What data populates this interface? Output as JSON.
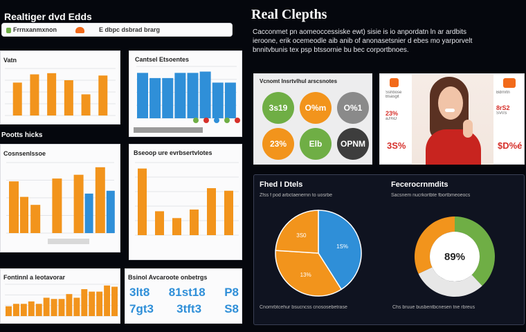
{
  "colors": {
    "orange": "#f2941c",
    "blue": "#2f8fd8",
    "green": "#6fae45",
    "gray": "#8a8a8a",
    "dark": "#3d3d3d",
    "panel": "#0f1320",
    "red": "#d6302a"
  },
  "header": {
    "title": "Realtiger dvd Edds",
    "tab1": "Frrnxanmxnon",
    "tab2": "E dbpc dsbrad brarg"
  },
  "right_header": {
    "title": "Real Clepths",
    "desc_lines": [
      "Cacconmet pn aomeoccessiske ewt) sisie is io anpordatn ln ar ardbits",
      "ieroone, erik ocemeodle aib anib of anonasetsnier d ebes mo yarporvelt",
      "bnnitvbunis tex psp btssornie bu bec corportbnoes."
    ]
  },
  "panel_a": {
    "label": "Vatn",
    "bars": [
      28,
      35,
      36,
      30,
      18,
      34
    ]
  },
  "panel_b": {
    "title": "Cantsel Etsoentes",
    "bars": [
      70,
      62,
      62,
      70,
      70,
      72,
      55,
      55
    ]
  },
  "section_label_1": "Pootts hicks",
  "panel_c": {
    "title": "Cosnsenlssoe",
    "bars": [
      {
        "o": 55,
        "b": 0
      },
      {
        "o": 30,
        "b": 0
      },
      {
        "o": 58,
        "b": 0
      },
      {
        "o": 62,
        "b": 42
      },
      {
        "o": 70,
        "b": 45
      }
    ]
  },
  "panel_d": {
    "title": "Bseoop ure evrbsertvlotes",
    "bars": [
      78,
      28,
      20,
      30,
      55,
      52
    ]
  },
  "panel_e": {
    "title": "Fontinnl a leotavorar",
    "bars": [
      8,
      10,
      10,
      12,
      10,
      15,
      14,
      14,
      18,
      15,
      22,
      20,
      20,
      25,
      24
    ]
  },
  "panel_f": {
    "title": "Bsinol Avcaroote onbetrgs",
    "rows": [
      [
        "3lt8",
        "81st18",
        "P8"
      ],
      [
        "7gt3",
        "3tft3",
        "S8"
      ]
    ]
  },
  "circles_card": {
    "title": "Vcnomt lnsrtvlhul arscsnotes",
    "items": [
      {
        "label": "3s19",
        "color": "#6fae45"
      },
      {
        "label": "O%m",
        "color": "#f2941c"
      },
      {
        "label": "O%1",
        "color": "#8a8a8a"
      },
      {
        "label": "23%",
        "color": "#f2941c"
      },
      {
        "label": "Elb",
        "color": "#6fae45"
      },
      {
        "label": "OPNM",
        "color": "#3d3d3d"
      }
    ]
  },
  "promo_card": {
    "left_items": [
      "Sshbose",
      "Bsasgit",
      "23%",
      "aJ%O"
    ],
    "right_items": [
      "Bdrnrtn",
      "8rS2",
      "SV0S"
    ],
    "left_value": "3S%",
    "right_value": "$D%é"
  },
  "pie_panel": {
    "left": {
      "title": "Fhed I Dtels",
      "subtitle": "Zfss f pod arbctaenernn to uosrbe",
      "slices": [
        {
          "label": "1S%",
          "value": 41,
          "color": "#2f8fd8"
        },
        {
          "label": "13%",
          "value": 35,
          "color": "#f2941c"
        },
        {
          "label": "3S0",
          "value": 24,
          "color": "#f2941c"
        }
      ],
      "caption": "Cnomrbtcehur bsucncss cnososebetrase"
    },
    "right": {
      "title": "Fecerocrnmdits",
      "subtitle": "Sacsnem nucrkortbte fbortbmeoeocs",
      "center": "89%",
      "segments": [
        {
          "value": 38,
          "color": "#6fae45"
        },
        {
          "value": 30,
          "color": "#e7e7e7"
        },
        {
          "value": 32,
          "color": "#f2941c"
        }
      ],
      "caption": "Chs bruue busbentbcnesen tne rbreus"
    }
  }
}
